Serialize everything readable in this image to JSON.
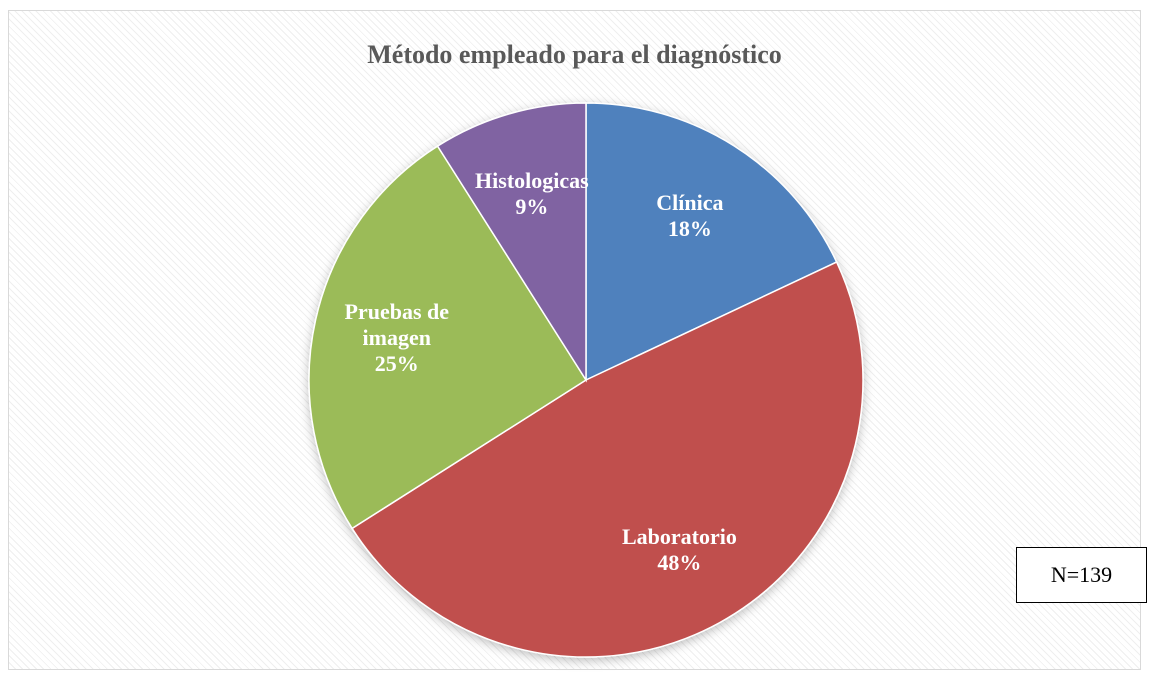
{
  "chart_data": {
    "type": "pie",
    "title": "Método empleado para el diagnóstico",
    "categories": [
      "Clínica",
      "Laboratorio",
      "Pruebas de imagen",
      "Histologicas"
    ],
    "values": [
      18,
      48,
      25,
      9
    ],
    "value_labels": [
      "18%",
      "48%",
      "25%",
      "9%"
    ],
    "colors": [
      "#4f81bd",
      "#c0504d",
      "#9bbb59",
      "#8064a2"
    ],
    "annotation": "N=139"
  }
}
